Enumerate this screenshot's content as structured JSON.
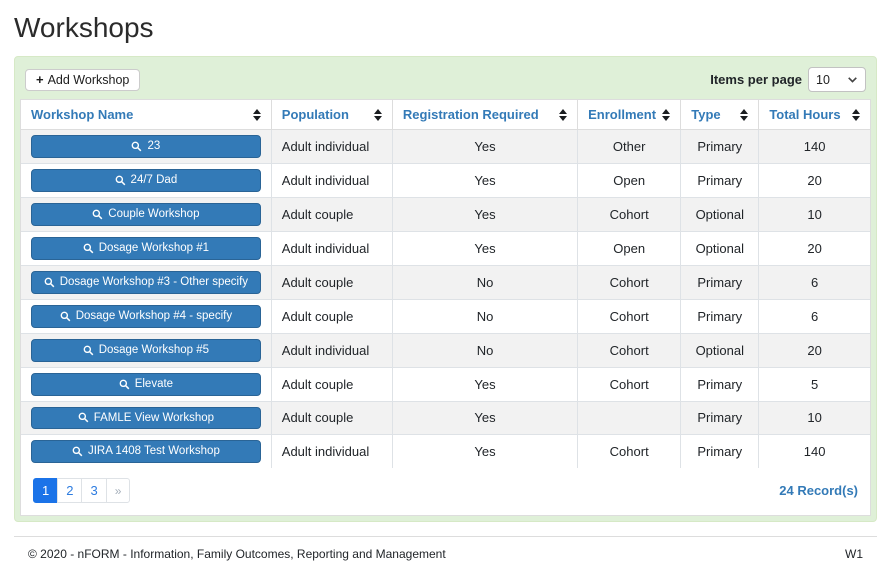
{
  "page": {
    "title": "Workshops"
  },
  "toolbar": {
    "add_button_label": "Add Workshop",
    "add_icon": "+",
    "items_per_page_label": "Items per page",
    "items_per_page_value": "10"
  },
  "table": {
    "columns": [
      "Workshop Name",
      "Population",
      "Registration Required",
      "Enrollment",
      "Type",
      "Total Hours"
    ],
    "rows": [
      {
        "name": "23",
        "population": "Adult individual",
        "registration_required": "Yes",
        "enrollment": "Other",
        "type": "Primary",
        "total_hours": "140"
      },
      {
        "name": "24/7 Dad",
        "population": "Adult individual",
        "registration_required": "Yes",
        "enrollment": "Open",
        "type": "Primary",
        "total_hours": "20"
      },
      {
        "name": "Couple Workshop",
        "population": "Adult couple",
        "registration_required": "Yes",
        "enrollment": "Cohort",
        "type": "Optional",
        "total_hours": "10"
      },
      {
        "name": "Dosage Workshop #1",
        "population": "Adult individual",
        "registration_required": "Yes",
        "enrollment": "Open",
        "type": "Optional",
        "total_hours": "20"
      },
      {
        "name": "Dosage Workshop #3 - Other specify",
        "population": "Adult couple",
        "registration_required": "No",
        "enrollment": "Cohort",
        "type": "Primary",
        "total_hours": "6"
      },
      {
        "name": "Dosage Workshop #4 - specify",
        "population": "Adult couple",
        "registration_required": "No",
        "enrollment": "Cohort",
        "type": "Primary",
        "total_hours": "6"
      },
      {
        "name": "Dosage Workshop #5",
        "population": "Adult individual",
        "registration_required": "No",
        "enrollment": "Cohort",
        "type": "Optional",
        "total_hours": "20"
      },
      {
        "name": "Elevate",
        "population": "Adult couple",
        "registration_required": "Yes",
        "enrollment": "Cohort",
        "type": "Primary",
        "total_hours": "5"
      },
      {
        "name": "FAMLE View Workshop",
        "population": "Adult couple",
        "registration_required": "Yes",
        "enrollment": "",
        "type": "Primary",
        "total_hours": "10"
      },
      {
        "name": "JIRA 1408 Test Workshop",
        "population": "Adult individual",
        "registration_required": "Yes",
        "enrollment": "Cohort",
        "type": "Primary",
        "total_hours": "140"
      }
    ]
  },
  "pagination": {
    "pages": [
      "1",
      "2",
      "3"
    ],
    "active_page": "1",
    "next_label": "»",
    "records_label": "24 Record(s)"
  },
  "footer": {
    "copyright": "© 2020 - nFORM - Information, Family Outcomes, Reporting and Management",
    "version": "W1"
  },
  "colors": {
    "panel_background": "#dff0d8",
    "panel_border": "#d6e9c6",
    "header_text": "#337ab7",
    "workshop_button": "#337ab7",
    "active_page": "#1b73e8",
    "stripe_row": "#f2f2f2"
  }
}
